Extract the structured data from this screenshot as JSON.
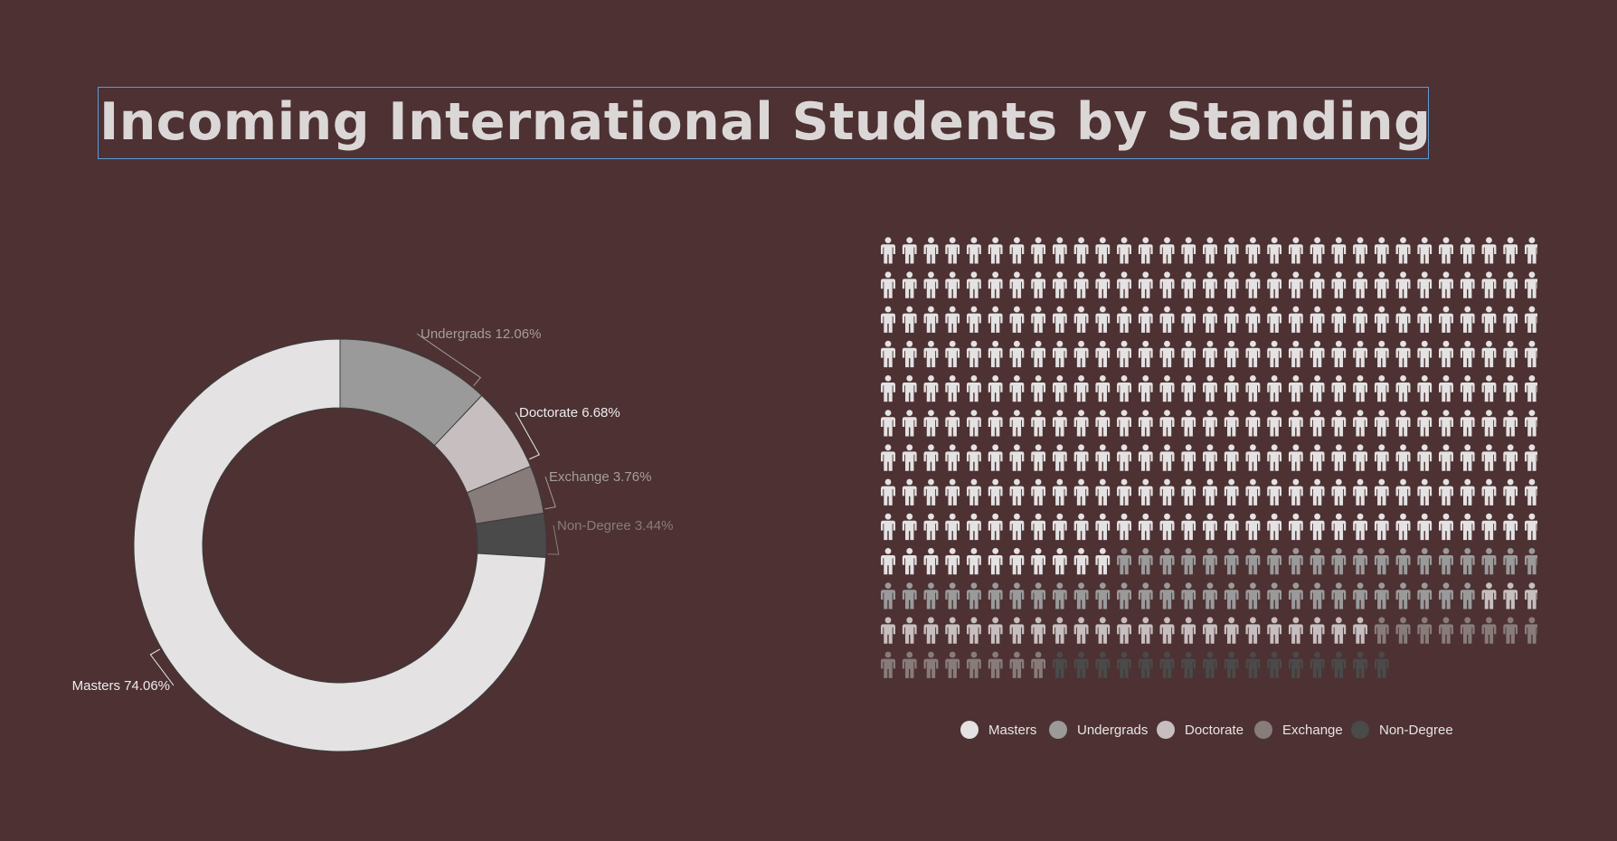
{
  "title": "Incoming International Students by Standing",
  "colors": {
    "background": "#4d3133",
    "Masters": "#e4e2e2",
    "Undergrads": "#9a9a9a",
    "Doctorate": "#c7bfbf",
    "Exchange": "#887c7b",
    "Non-Degree": "#4a4a4a",
    "label_light": "#ececec",
    "label_dim": "#a59d9d"
  },
  "chart_data": [
    {
      "type": "pie",
      "style": "donut",
      "categories": [
        "Undergrads",
        "Doctorate",
        "Exchange",
        "Non-Degree",
        "Masters"
      ],
      "values": [
        12.06,
        6.68,
        3.76,
        3.44,
        74.06
      ],
      "labels": [
        "Undergrads 12.06%",
        "Doctorate 6.68%",
        "Exchange 3.76%",
        "Non-Degree 3.44%",
        "Masters 74.06%"
      ],
      "legend": "none"
    },
    {
      "type": "pictogram",
      "unit": "person-icon",
      "categories": [
        "Masters",
        "Undergrads",
        "Doctorate",
        "Exchange",
        "Non-Degree"
      ],
      "counts": [
        290,
        48,
        26,
        16,
        16
      ],
      "legend": [
        "Masters",
        "Undergrads",
        "Doctorate",
        "Exchange",
        "Non-Degree"
      ],
      "legend_position": "bottom"
    }
  ]
}
